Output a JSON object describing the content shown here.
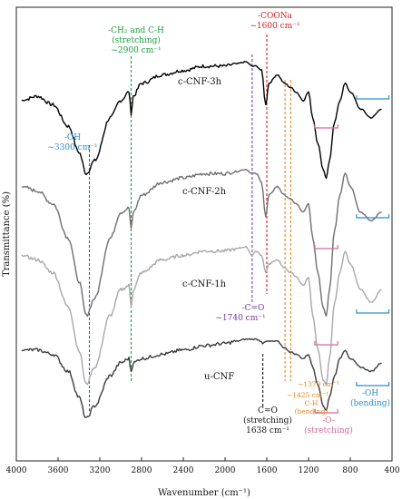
{
  "chart_data": {
    "type": "line",
    "title": "",
    "xlabel": "Wavenumber (cm⁻¹)",
    "ylabel": "Transmittance (%)",
    "xlim": [
      4000,
      400
    ],
    "x_reversed": true,
    "y_ticks_shown": false,
    "grid": false,
    "legend": "none (series labels drawn next to curves)",
    "xticks": [
      4000,
      3600,
      3200,
      2800,
      2400,
      2000,
      1600,
      1200,
      800,
      400
    ],
    "series": [
      {
        "name": "c-CNF-3h",
        "color": "#000000",
        "x": [
          3950,
          3800,
          3650,
          3500,
          3400,
          3330,
          3250,
          3100,
          3000,
          2920,
          2900,
          2880,
          2800,
          2600,
          2400,
          2200,
          2000,
          1900,
          1800,
          1740,
          1700,
          1650,
          1610,
          1580,
          1500,
          1430,
          1370,
          1320,
          1250,
          1200,
          1160,
          1110,
          1060,
          1030,
          1000,
          950,
          900,
          850,
          800,
          700,
          600,
          500
        ],
        "y": [
          80,
          81,
          79,
          74,
          68,
          63,
          66,
          76,
          80,
          82,
          77,
          81,
          84,
          86,
          87,
          88,
          88,
          88.5,
          89,
          88,
          88,
          87,
          79,
          84,
          86,
          84,
          83,
          82,
          80,
          82,
          76,
          70,
          64,
          62,
          66,
          75,
          80,
          84,
          82,
          78,
          76,
          78
        ]
      },
      {
        "name": "c-CNF-2h",
        "color": "#6f6f6f",
        "x": [
          3950,
          3800,
          3650,
          3500,
          3400,
          3330,
          3250,
          3100,
          3000,
          2920,
          2900,
          2880,
          2800,
          2600,
          2400,
          2200,
          2000,
          1900,
          1800,
          1740,
          1700,
          1650,
          1610,
          1580,
          1500,
          1430,
          1370,
          1320,
          1250,
          1200,
          1160,
          1110,
          1060,
          1030,
          1000,
          950,
          900,
          850,
          800,
          700,
          600,
          500
        ],
        "y": [
          60,
          59,
          56,
          48,
          38,
          30,
          34,
          48,
          54,
          55,
          50,
          54,
          58,
          61,
          62,
          63,
          63,
          63.5,
          64,
          63,
          63,
          61,
          53,
          58,
          60,
          58,
          57,
          56,
          54,
          56,
          48,
          40,
          32,
          30,
          36,
          50,
          58,
          63,
          60,
          54,
          52,
          54
        ]
      },
      {
        "name": "c-CNF-1h",
        "color": "#a8a8a8",
        "x": [
          3950,
          3800,
          3650,
          3500,
          3400,
          3330,
          3250,
          3100,
          3000,
          2920,
          2900,
          2880,
          2800,
          2600,
          2400,
          2200,
          2000,
          1900,
          1800,
          1740,
          1700,
          1650,
          1610,
          1580,
          1500,
          1430,
          1370,
          1320,
          1250,
          1200,
          1160,
          1110,
          1060,
          1030,
          1000,
          950,
          900,
          850,
          800,
          700,
          600,
          500
        ],
        "y": [
          44,
          43,
          40,
          32,
          22,
          14,
          18,
          30,
          36,
          37,
          32,
          36,
          40,
          43,
          44,
          45,
          45,
          45.5,
          46,
          44,
          45,
          44,
          40,
          42,
          43,
          41,
          40,
          39,
          37,
          39,
          30,
          22,
          15,
          14,
          20,
          33,
          40,
          45,
          42,
          36,
          33,
          36
        ]
      },
      {
        "name": "u-CNF",
        "color": "#3c3c3c",
        "x": [
          3950,
          3800,
          3650,
          3500,
          3400,
          3330,
          3250,
          3100,
          3000,
          2920,
          2900,
          2880,
          2800,
          2600,
          2400,
          2200,
          2000,
          1900,
          1800,
          1740,
          1700,
          1650,
          1638,
          1600,
          1500,
          1430,
          1370,
          1320,
          1250,
          1200,
          1160,
          1110,
          1060,
          1030,
          1000,
          950,
          900,
          850,
          800,
          700,
          600,
          500
        ],
        "y": [
          22,
          22,
          21,
          17,
          11,
          6,
          9,
          16,
          19,
          20,
          17,
          19,
          20,
          21,
          22,
          23,
          23.5,
          24,
          24.5,
          24.5,
          24.5,
          24,
          23.5,
          24,
          24,
          22.5,
          21.5,
          21,
          20,
          21,
          18,
          14,
          9,
          8,
          11,
          16,
          20,
          22,
          20,
          18,
          17,
          19
        ]
      }
    ],
    "series_labels": [
      {
        "text": "c-CNF-3h",
        "series": "c-CNF-3h"
      },
      {
        "text": "c-CNF-2h",
        "series": "c-CNF-2h"
      },
      {
        "text": "c-CNF-1h",
        "series": "c-CNF-1h"
      },
      {
        "text": "u-CNF",
        "series": "u-CNF"
      }
    ],
    "reference_lines": [
      {
        "x": 3300,
        "color": "#1f5fbf"
      },
      {
        "x": 2900,
        "color": "#1a9c3e"
      },
      {
        "x": 1740,
        "color": "#7a35a8"
      },
      {
        "x": 1600,
        "color": "#d11f1f"
      },
      {
        "x": 1638,
        "color": "#111111"
      },
      {
        "x": 1425,
        "color": "#e8861c"
      },
      {
        "x": 1370,
        "color": "#e8861c"
      }
    ],
    "annotations": {
      "oh_stretch": [
        "-OH",
        "~3300 cm⁻¹"
      ],
      "ch_stretch": [
        "-CH₂ and C-H",
        "(stretching)",
        "~2900 cm⁻¹"
      ],
      "coona": [
        "-COONa",
        "~1600 cm⁻¹"
      ],
      "co_1740": [
        "-C=O",
        "~1740 cm⁻¹"
      ],
      "co_1638": [
        "C=O",
        "(stretching)",
        "1638 cm⁻¹"
      ],
      "ch_bend_1425": [
        "~1425 cm⁻¹"
      ],
      "ch_bend_1370": [
        "~1370 cm⁻¹"
      ],
      "ch_bend_label": [
        "C-H",
        "(bending)"
      ],
      "o_stretch": [
        "-O-",
        "(stretching)"
      ],
      "oh_bend": [
        "-OH",
        "(bending)"
      ]
    },
    "colors": {
      "blue": "#1f5fbf",
      "green": "#1a9c3e",
      "purple": "#7a35a8",
      "red": "#d11f1f",
      "orange": "#e8861c",
      "pink": "#d4699a",
      "cyan": "#2a8fc9"
    }
  }
}
